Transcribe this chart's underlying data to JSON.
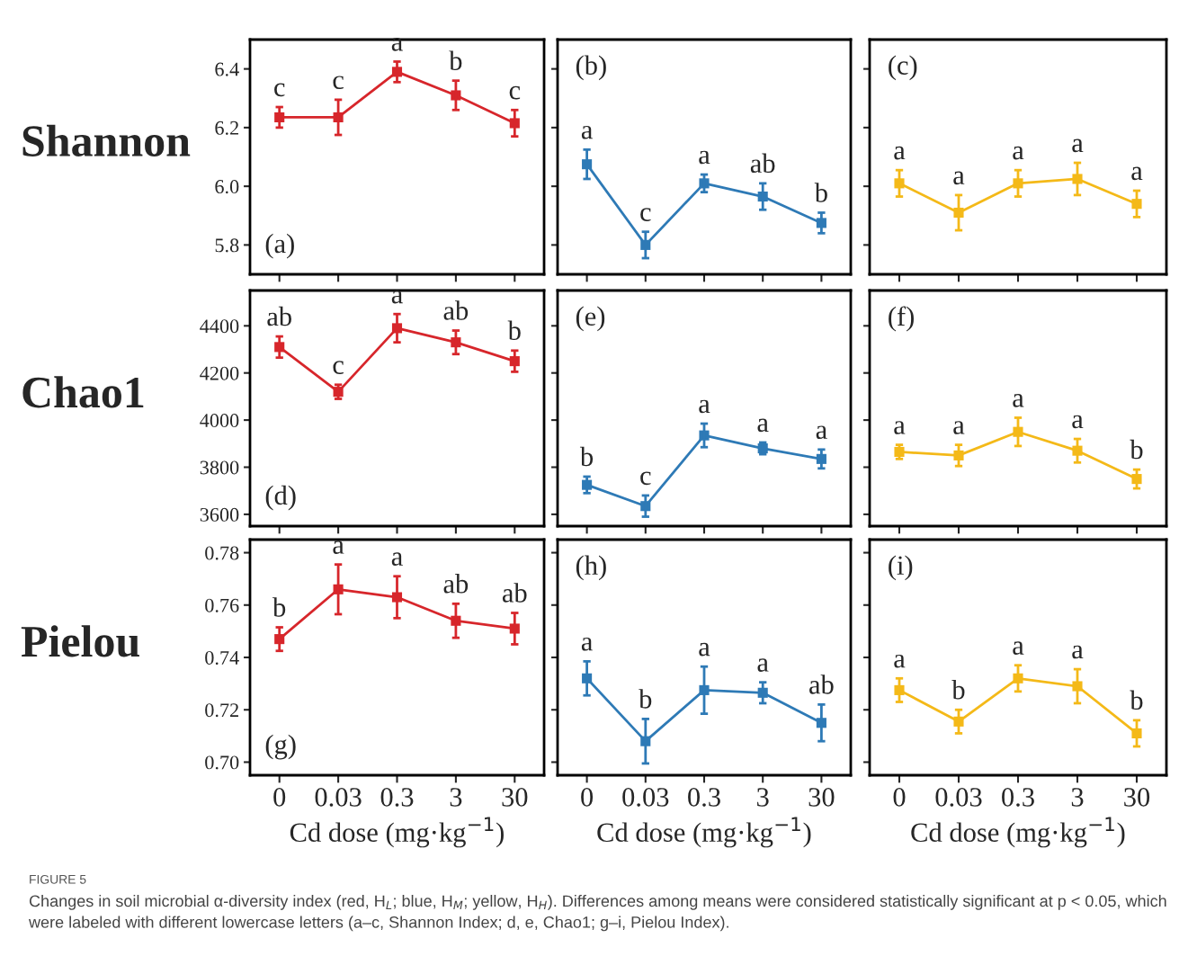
{
  "chart_data": [
    {
      "type": "line",
      "ylabel": "Shannon",
      "categories": [
        "0",
        "0.03",
        "0.3",
        "3",
        "30"
      ],
      "ylim": [
        5.7,
        6.5
      ],
      "yticks": [
        5.8,
        {
          "value": 6,
          "label": "6.0"
        },
        6.2,
        6.4
      ],
      "marker": "square",
      "tick_labels": "y",
      "series": [
        {
          "color": "#d7262b",
          "values": [
            6.235,
            6.235,
            6.39,
            6.31,
            6.215
          ],
          "errors": [
            0.035,
            0.06,
            0.035,
            0.05,
            0.045
          ]
        }
      ],
      "annotations": [
        "(a)",
        {
          "text": "c",
          "x": "0",
          "y": 6.27
        },
        {
          "text": "c",
          "x": "0.03",
          "y": 6.295
        },
        {
          "text": "a",
          "x": "0.3",
          "y": 6.425
        },
        {
          "text": "b",
          "x": "3",
          "y": 6.36
        },
        {
          "text": "c",
          "x": "30",
          "y": 6.26
        }
      ]
    },
    {
      "type": "line",
      "categories": [
        "0",
        "0.03",
        "0.3",
        "3",
        "30"
      ],
      "ylim": [
        5.7,
        6.5
      ],
      "yticks": [
        5.8,
        6.0,
        6.2,
        6.4
      ],
      "marker": "square",
      "tick_labels": false,
      "series": [
        {
          "color": "#2e7ab6",
          "values": [
            6.075,
            5.8,
            6.01,
            5.965,
            5.875
          ],
          "errors": [
            0.05,
            0.045,
            0.03,
            0.045,
            0.035
          ]
        }
      ],
      "annotations": [
        "(b)",
        {
          "text": "a",
          "x": "0",
          "y": 6.125
        },
        {
          "text": "c",
          "x": "0.03",
          "y": 5.845
        },
        {
          "text": "a",
          "x": "0.3",
          "y": 6.04
        },
        {
          "text": "ab",
          "x": "3",
          "y": 6.01
        },
        {
          "text": "b",
          "x": "30",
          "y": 5.91
        }
      ]
    },
    {
      "type": "line",
      "categories": [
        "0",
        "0.03",
        "0.3",
        "3",
        "30"
      ],
      "ylim": [
        5.7,
        6.5
      ],
      "yticks": [
        5.8,
        6.0,
        6.2,
        6.4
      ],
      "marker": "square",
      "tick_labels": false,
      "series": [
        {
          "color": "#f4b918",
          "values": [
            6.01,
            5.91,
            6.01,
            6.025,
            5.94
          ],
          "errors": [
            0.045,
            0.06,
            0.045,
            0.055,
            0.045
          ]
        }
      ],
      "annotations": [
        "(c)",
        {
          "text": "a",
          "x": "0",
          "y": 6.055
        },
        {
          "text": "a",
          "x": "0.03",
          "y": 5.97
        },
        {
          "text": "a",
          "x": "0.3",
          "y": 6.055
        },
        {
          "text": "a",
          "x": "3",
          "y": 6.08
        },
        {
          "text": "a",
          "x": "30",
          "y": 5.985
        }
      ]
    },
    {
      "type": "line",
      "ylabel": "Chao1",
      "categories": [
        "0",
        "0.03",
        "0.3",
        "3",
        "30"
      ],
      "ylim": [
        3550,
        4550
      ],
      "yticks": [
        3600,
        3800,
        4000,
        4200,
        4400
      ],
      "marker": "square",
      "tick_labels": "y",
      "series": [
        {
          "color": "#d7262b",
          "values": [
            4310,
            4120,
            4390,
            4330,
            4250
          ],
          "errors": [
            45,
            30,
            60,
            50,
            45
          ]
        }
      ],
      "annotations": [
        "(d)",
        {
          "text": "ab",
          "x": "0",
          "y": 4355
        },
        {
          "text": "c",
          "x": "0.03",
          "y": 4150
        },
        {
          "text": "a",
          "x": "0.3",
          "y": 4450
        },
        {
          "text": "ab",
          "x": "3",
          "y": 4380
        },
        {
          "text": "b",
          "x": "30",
          "y": 4295
        }
      ]
    },
    {
      "type": "line",
      "categories": [
        "0",
        "0.03",
        "0.3",
        "3",
        "30"
      ],
      "ylim": [
        3550,
        4550
      ],
      "yticks": [
        3600,
        3800,
        4000,
        4200,
        4400
      ],
      "marker": "square",
      "tick_labels": false,
      "series": [
        {
          "color": "#2e7ab6",
          "values": [
            3725,
            3635,
            3935,
            3880,
            3835
          ],
          "errors": [
            35,
            45,
            50,
            25,
            40
          ]
        }
      ],
      "annotations": [
        "(e)",
        {
          "text": "b",
          "x": "0",
          "y": 3760
        },
        {
          "text": "c",
          "x": "0.03",
          "y": 3680
        },
        {
          "text": "a",
          "x": "0.3",
          "y": 3985
        },
        {
          "text": "a",
          "x": "3",
          "y": 3905
        },
        {
          "text": "a",
          "x": "30",
          "y": 3875
        }
      ]
    },
    {
      "type": "line",
      "categories": [
        "0",
        "0.03",
        "0.3",
        "3",
        "30"
      ],
      "ylim": [
        3550,
        4550
      ],
      "yticks": [
        3600,
        3800,
        4000,
        4200,
        4400
      ],
      "marker": "square",
      "tick_labels": false,
      "series": [
        {
          "color": "#f4b918",
          "values": [
            3865,
            3850,
            3950,
            3870,
            3750
          ],
          "errors": [
            30,
            45,
            60,
            50,
            40
          ]
        }
      ],
      "annotations": [
        "(f)",
        {
          "text": "a",
          "x": "0",
          "y": 3895
        },
        {
          "text": "a",
          "x": "0.03",
          "y": 3895
        },
        {
          "text": "a",
          "x": "0.3",
          "y": 4010
        },
        {
          "text": "a",
          "x": "3",
          "y": 3920
        },
        {
          "text": "b",
          "x": "30",
          "y": 3790
        }
      ]
    },
    {
      "type": "line",
      "ylabel": "Pielou",
      "xlabel": "Cd dose (mg·kg$^{−1}$)",
      "categories": [
        "0",
        "0.03",
        "0.3",
        "3",
        "30"
      ],
      "ylim": [
        0.695,
        0.785
      ],
      "yticks": [
        {
          "value": 0.7,
          "label": "0.70"
        },
        {
          "value": 0.72,
          "label": "0.72"
        },
        {
          "value": 0.74,
          "label": "0.74"
        },
        {
          "value": 0.76,
          "label": "0.76"
        },
        {
          "value": 0.78,
          "label": "0.78"
        }
      ],
      "marker": "square",
      "series": [
        {
          "color": "#d7262b",
          "values": [
            0.747,
            0.766,
            0.763,
            0.754,
            0.751
          ],
          "errors": [
            0.0045,
            0.0095,
            0.008,
            0.0065,
            0.006
          ]
        }
      ],
      "annotations": [
        "(g)",
        {
          "text": "b",
          "x": "0",
          "y": 0.7515
        },
        {
          "text": "a",
          "x": "0.03",
          "y": 0.7755
        },
        {
          "text": "a",
          "x": "0.3",
          "y": 0.771
        },
        {
          "text": "ab",
          "x": "3",
          "y": 0.7605
        },
        {
          "text": "ab",
          "x": "30",
          "y": 0.757
        }
      ]
    },
    {
      "type": "line",
      "xlabel": "Cd dose (mg·kg$^{−1}$)",
      "categories": [
        "0",
        "0.03",
        "0.3",
        "3",
        "30"
      ],
      "ylim": [
        0.695,
        0.785
      ],
      "yticks": [
        0.7,
        0.72,
        0.74,
        0.76,
        0.78
      ],
      "marker": "square",
      "tick_labels": "x",
      "series": [
        {
          "color": "#2e7ab6",
          "values": [
            0.732,
            0.708,
            0.7275,
            0.7265,
            0.715
          ],
          "errors": [
            0.0065,
            0.0085,
            0.009,
            0.004,
            0.007
          ]
        }
      ],
      "annotations": [
        "(h)",
        {
          "text": "a",
          "x": "0",
          "y": 0.7385
        },
        {
          "text": "b",
          "x": "0.03",
          "y": 0.7165
        },
        {
          "text": "a",
          "x": "0.3",
          "y": 0.7365
        },
        {
          "text": "a",
          "x": "3",
          "y": 0.7305
        },
        {
          "text": "ab",
          "x": "30",
          "y": 0.722
        }
      ]
    },
    {
      "type": "line",
      "xlabel": "Cd dose (mg·kg$^{−1}$)",
      "categories": [
        "0",
        "0.03",
        "0.3",
        "3",
        "30"
      ],
      "ylim": [
        0.695,
        0.785
      ],
      "yticks": [
        0.7,
        0.72,
        0.74,
        0.76,
        0.78
      ],
      "marker": "square",
      "tick_labels": "x",
      "series": [
        {
          "color": "#f4b918",
          "values": [
            0.7275,
            0.7155,
            0.732,
            0.729,
            0.711
          ],
          "errors": [
            0.0045,
            0.0045,
            0.005,
            0.0065,
            0.005
          ]
        }
      ],
      "annotations": [
        "(i)",
        {
          "text": "a",
          "x": "0",
          "y": 0.732
        },
        {
          "text": "b",
          "x": "0.03",
          "y": 0.72
        },
        {
          "text": "a",
          "x": "0.3",
          "y": 0.737
        },
        {
          "text": "a",
          "x": "3",
          "y": 0.7355
        },
        {
          "text": "b",
          "x": "30",
          "y": 0.716
        },
        "FIGURE 5",
        "Changes in soil microbial α-diversity index (red, H$_{L}$; blue, H$_{M}$; yellow, H$_{H}$). Differences among means were considered statistically significant at p < 0.05, which were labeled with different lowercase letters (a–c, Shannon Index; d, e, Chao1; g–i, Pielou Index)."
      ]
    }
  ]
}
